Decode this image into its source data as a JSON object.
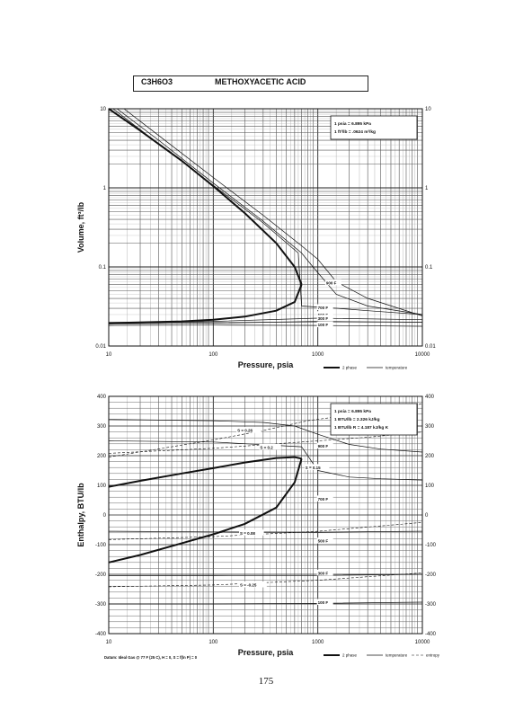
{
  "header": {
    "formula": "C3H6O3",
    "name": "METHOXYACETIC ACID"
  },
  "page_number": "175",
  "chart_data": [
    {
      "type": "line",
      "xlabel": "Pressure,  psia",
      "ylabel": "Volume, ft^3/lb",
      "x_scale": "log",
      "y_scale": "log",
      "xlim": [
        10,
        10000
      ],
      "ylim": [
        0.01,
        10
      ],
      "x_ticks": [
        "10",
        "100",
        "1000",
        "10000"
      ],
      "y_ticks_left": [
        "10",
        "1",
        "0.1",
        "0.01"
      ],
      "y_ticks_right": [
        "10",
        "1",
        "0.1",
        "0.01"
      ],
      "grid": true,
      "conversions": [
        "1 psia  =  6.895 kPa",
        "1 ft^3/lb  =  .0624 m^3/kg"
      ],
      "legend": {
        "position": "bottom-right",
        "two_phase": "2 phase",
        "temperature": "temperature"
      },
      "series": [
        {
          "role": "two_phase_vapor",
          "x": [
            10,
            20,
            50,
            100,
            200,
            400,
            600,
            700
          ],
          "y": [
            10,
            5.3,
            2.2,
            1.05,
            0.48,
            0.2,
            0.1,
            0.06
          ]
        },
        {
          "role": "two_phase_liquid",
          "x": [
            10,
            50,
            100,
            200,
            400,
            600,
            700
          ],
          "y": [
            0.0195,
            0.0205,
            0.0215,
            0.0235,
            0.028,
            0.036,
            0.06
          ]
        },
        {
          "role": "isotherm",
          "x": [
            14,
            30,
            100,
            300,
            700,
            1000,
            1500,
            3000,
            10000
          ],
          "y": [
            10,
            4.6,
            1.35,
            0.45,
            0.185,
            0.125,
            0.065,
            0.04,
            0.024
          ]
        },
        {
          "role": "isotherm",
          "x": [
            12,
            30,
            100,
            300,
            700,
            900,
            1500,
            3000,
            10000
          ],
          "y": [
            10,
            4.0,
            1.15,
            0.38,
            0.15,
            0.1,
            0.045,
            0.032,
            0.025
          ]
        },
        {
          "role": "isotherm",
          "x": [
            11,
            30,
            100,
            300,
            650,
            700,
            1500,
            3000,
            10000
          ],
          "y": [
            10,
            3.6,
            1.08,
            0.36,
            0.15,
            0.032,
            0.03,
            0.028,
            0.025
          ]
        },
        {
          "role": "isotherm",
          "x": [
            10,
            100,
            1000,
            10000
          ],
          "y": [
            0.0192,
            0.0205,
            0.0225,
            0.0215
          ]
        },
        {
          "role": "isotherm",
          "x": [
            10,
            100,
            1000,
            10000
          ],
          "y": [
            0.019,
            0.0195,
            0.0205,
            0.02
          ]
        },
        {
          "role": "isotherm",
          "x": [
            10,
            100,
            1000,
            10000
          ],
          "y": [
            0.0182,
            0.0184,
            0.0182,
            0.0178
          ]
        }
      ],
      "annotations": [
        {
          "text": "900 F",
          "x": 1200,
          "y": 0.062
        },
        {
          "text": "700 F",
          "x": 1000,
          "y": 0.03
        },
        {
          "text": "500 F",
          "x": 1000,
          "y": 0.0245
        },
        {
          "text": "300 F",
          "x": 1000,
          "y": 0.022
        },
        {
          "text": "100 F",
          "x": 1000,
          "y": 0.0182
        }
      ]
    },
    {
      "type": "line",
      "xlabel": "Pressure,  psia",
      "ylabel": "Enthalpy, BTU/lb",
      "x_scale": "log",
      "xlim": [
        10,
        10000
      ],
      "ylim": [
        -400,
        400
      ],
      "x_ticks": [
        "10",
        "100",
        "1000",
        "10000"
      ],
      "y_ticks_left": [
        "400",
        "300",
        "200",
        "100",
        "0",
        "-100",
        "-200",
        "-300",
        "-400"
      ],
      "y_ticks_right": [
        "400",
        "300",
        "200",
        "100",
        "0",
        "-100",
        "-200",
        "-300",
        "-400"
      ],
      "grid": true,
      "conversions": [
        "1 psia  =  6.895 kPa",
        "1 BTU/lb  =  2.326 kJ/kg",
        "1 BTU/lb R  =  4.187 kJ/kg K"
      ],
      "legend": {
        "position": "bottom-right",
        "two_phase": "2 phase",
        "temperature": "temperature",
        "entropy": "entropy"
      },
      "datum": "Datum: Ideal Gas @ 77 F (25 C),  H = 0,  S = f(ln P) = 0",
      "series": [
        {
          "role": "two_phase_vapor",
          "x": [
            10,
            20,
            50,
            100,
            200,
            400,
            600,
            700
          ],
          "y": [
            95,
            115,
            140,
            158,
            177,
            192,
            195,
            190
          ]
        },
        {
          "role": "two_phase_liquid",
          "x": [
            10,
            20,
            50,
            100,
            200,
            400,
            600,
            700
          ],
          "y": [
            -160,
            -135,
            -95,
            -65,
            -30,
            25,
            110,
            190
          ]
        },
        {
          "role": "isotherm",
          "x": [
            10,
            100,
            300,
            600,
            1000,
            2000,
            4000,
            10000
          ],
          "y": [
            322,
            318,
            312,
            300,
            272,
            238,
            222,
            212
          ]
        },
        {
          "role": "isotherm",
          "x": [
            10,
            100,
            700,
            1000,
            2000,
            4000,
            10000
          ],
          "y": [
            250,
            246,
            230,
            150,
            128,
            122,
            118
          ]
        },
        {
          "role": "isotherm",
          "x": [
            10,
            100,
            1000,
            10000
          ],
          "y": [
            -55,
            -57,
            -58,
            -55
          ]
        },
        {
          "role": "isotherm",
          "x": [
            10,
            100,
            1000,
            10000
          ],
          "y": [
            -205,
            -205,
            -204,
            -200
          ]
        },
        {
          "role": "isotherm",
          "x": [
            10,
            100,
            1000,
            10000
          ],
          "y": [
            -300,
            -300,
            -298,
            -294
          ]
        },
        {
          "role": "entropy",
          "x": [
            10,
            100,
            300,
            800,
            3000,
            10000
          ],
          "y": [
            195,
            253,
            285,
            318,
            345,
            375
          ]
        },
        {
          "role": "entropy",
          "x": [
            10,
            100,
            400,
            1000,
            3000,
            10000
          ],
          "y": [
            208,
            225,
            240,
            250,
            262,
            280
          ]
        },
        {
          "role": "entropy",
          "x": [
            10,
            100,
            1000,
            10000
          ],
          "y": [
            -83,
            -73,
            -55,
            -25
          ]
        },
        {
          "role": "entropy",
          "x": [
            10,
            100,
            1000,
            10000
          ],
          "y": [
            -242,
            -236,
            -220,
            -195
          ]
        }
      ],
      "annotations": [
        {
          "text": "S = 0.26",
          "x": 170,
          "y": 283
        },
        {
          "text": "S = 0.2",
          "x": 280,
          "y": 226
        },
        {
          "text": "S = 0.15",
          "x": 760,
          "y": 158
        },
        {
          "text": "S = 0.08",
          "x": 180,
          "y": -63
        },
        {
          "text": "S = -0.25",
          "x": 180,
          "y": -238
        },
        {
          "text": "900 F",
          "x": 1000,
          "y": 230
        },
        {
          "text": "700 F",
          "x": 1000,
          "y": 52
        },
        {
          "text": "500 F",
          "x": 1000,
          "y": -90
        },
        {
          "text": "300 F",
          "x": 1000,
          "y": -198
        },
        {
          "text": "100 F",
          "x": 1000,
          "y": -297
        }
      ]
    }
  ]
}
